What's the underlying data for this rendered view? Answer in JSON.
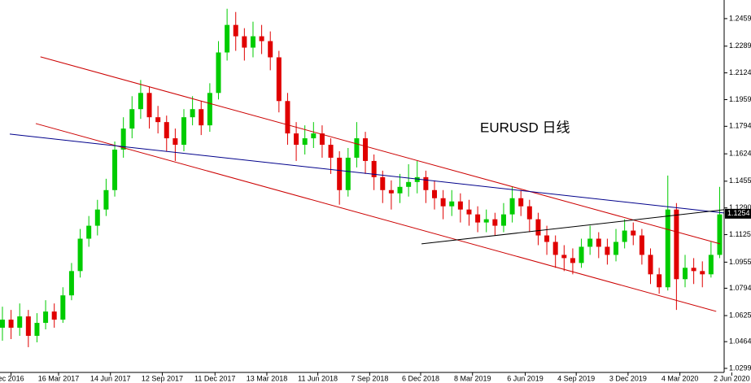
{
  "chart_data": {
    "type": "candlestick",
    "annotation": "EURUSD 日线",
    "up_color": "#00cc00",
    "down_color": "#e00000",
    "xlim": [
      -0.28,
      83.52
    ],
    "ylim": [
      1.0274,
      1.2574
    ],
    "yticks": [
      1.2459,
      1.2289,
      1.2124,
      1.1959,
      1.1794,
      1.1624,
      1.1455,
      {
        "value": 1.129,
        "label": "1.1290"
      },
      1.1125,
      1.0955,
      1.0794,
      1.0625,
      1.0464,
      1.0299
    ],
    "xticks": [
      {
        "value": 1,
        "label": "ec 2016"
      },
      {
        "value": 6.5,
        "label": "16 Mar 2017"
      },
      {
        "value": 12.5,
        "label": "14 Jun 2017"
      },
      {
        "value": 18.5,
        "label": "12 Sep 2017"
      },
      {
        "value": 24.6,
        "label": "11 Dec 2017"
      },
      {
        "value": 30.6,
        "label": "13 Mar 2018"
      },
      {
        "value": 36.5,
        "label": "11 Jun 2018"
      },
      {
        "value": 42.5,
        "label": "7 Sep 2018"
      },
      {
        "value": 48.4,
        "label": "6 Dec 2018"
      },
      {
        "value": 54.4,
        "label": "8 Mar 2019"
      },
      {
        "value": 60.5,
        "label": "6 Jun 2019"
      },
      {
        "value": 66.4,
        "label": "4 Sep 2019"
      },
      {
        "value": 72.4,
        "label": "3 Dec 2019"
      },
      {
        "value": 78.4,
        "label": "4 Mar 2020"
      },
      {
        "value": 84.4,
        "label": "2 Jun 2020"
      }
    ],
    "last_price": 1.1254,
    "open": [
      1.055,
      1.06,
      1.055,
      1.062,
      1.05,
      1.058,
      1.065,
      1.06,
      1.075,
      1.09,
      1.11,
      1.118,
      1.128,
      1.14,
      1.165,
      1.178,
      1.19,
      1.2,
      1.185,
      1.182,
      1.172,
      1.168,
      1.185,
      1.19,
      1.18,
      1.2,
      1.225,
      1.242,
      1.235,
      1.228,
      1.235,
      1.232,
      1.222,
      1.195,
      1.175,
      1.168,
      1.172,
      1.175,
      1.168,
      1.16,
      1.14,
      1.16,
      1.172,
      1.158,
      1.148,
      1.14,
      1.138,
      1.142,
      1.145,
      1.148,
      1.14,
      1.135,
      1.13,
      1.133,
      1.128,
      1.125,
      1.12,
      1.122,
      1.118,
      1.125,
      1.135,
      1.13,
      1.122,
      1.112,
      1.108,
      1.1,
      1.098,
      1.095,
      1.105,
      1.11,
      1.105,
      1.1,
      1.108,
      1.115,
      1.112,
      1.1,
      1.088,
      1.08,
      1.128,
      1.085,
      1.092,
      1.09,
      1.088,
      1.1
    ],
    "high": [
      1.068,
      1.066,
      1.07,
      1.066,
      1.064,
      1.072,
      1.07,
      1.08,
      1.095,
      1.116,
      1.124,
      1.134,
      1.147,
      1.17,
      1.185,
      1.198,
      1.208,
      1.204,
      1.192,
      1.186,
      1.178,
      1.19,
      1.198,
      1.195,
      1.206,
      1.232,
      1.252,
      1.25,
      1.24,
      1.244,
      1.242,
      1.238,
      1.226,
      1.2,
      1.182,
      1.18,
      1.182,
      1.18,
      1.172,
      1.164,
      1.166,
      1.182,
      1.176,
      1.162,
      1.152,
      1.146,
      1.15,
      1.156,
      1.158,
      1.152,
      1.146,
      1.14,
      1.14,
      1.138,
      1.134,
      1.13,
      1.128,
      1.126,
      1.132,
      1.142,
      1.14,
      1.134,
      1.126,
      1.118,
      1.112,
      1.106,
      1.104,
      1.11,
      1.118,
      1.114,
      1.11,
      1.116,
      1.122,
      1.12,
      1.116,
      1.104,
      1.092,
      1.149,
      1.132,
      1.1,
      1.098,
      1.096,
      1.108,
      1.142
    ],
    "low": [
      1.047,
      1.048,
      1.05,
      1.043,
      1.046,
      1.054,
      1.055,
      1.058,
      1.072,
      1.086,
      1.105,
      1.112,
      1.124,
      1.136,
      1.16,
      1.172,
      1.184,
      1.178,
      1.175,
      1.164,
      1.158,
      1.164,
      1.18,
      1.174,
      1.176,
      1.196,
      1.22,
      1.226,
      1.22,
      1.222,
      1.224,
      1.214,
      1.188,
      1.168,
      1.158,
      1.162,
      1.166,
      1.16,
      1.15,
      1.131,
      1.136,
      1.154,
      1.15,
      1.14,
      1.132,
      1.128,
      1.132,
      1.136,
      1.138,
      1.132,
      1.128,
      1.122,
      1.124,
      1.12,
      1.118,
      1.114,
      1.114,
      1.112,
      1.114,
      1.12,
      1.124,
      1.114,
      1.106,
      1.1,
      1.092,
      1.09,
      1.088,
      1.092,
      1.1,
      1.098,
      1.094,
      1.096,
      1.104,
      1.106,
      1.094,
      1.082,
      1.076,
      1.078,
      1.066,
      1.08,
      1.082,
      1.08,
      1.086,
      1.098
    ],
    "close": [
      1.06,
      1.055,
      1.062,
      1.05,
      1.058,
      1.065,
      1.06,
      1.075,
      1.09,
      1.11,
      1.118,
      1.128,
      1.14,
      1.165,
      1.178,
      1.19,
      1.2,
      1.185,
      1.182,
      1.172,
      1.168,
      1.185,
      1.19,
      1.18,
      1.2,
      1.225,
      1.242,
      1.235,
      1.228,
      1.235,
      1.232,
      1.222,
      1.195,
      1.175,
      1.168,
      1.172,
      1.175,
      1.168,
      1.16,
      1.14,
      1.16,
      1.172,
      1.158,
      1.148,
      1.14,
      1.138,
      1.142,
      1.145,
      1.148,
      1.14,
      1.135,
      1.13,
      1.133,
      1.128,
      1.125,
      1.12,
      1.122,
      1.118,
      1.125,
      1.135,
      1.13,
      1.122,
      1.112,
      1.108,
      1.1,
      1.098,
      1.095,
      1.105,
      1.11,
      1.105,
      1.1,
      1.108,
      1.115,
      1.112,
      1.1,
      1.088,
      1.08,
      1.128,
      1.085,
      1.092,
      1.09,
      1.088,
      1.1,
      1.125
    ],
    "trend_lines": [
      {
        "color": "#cc0000",
        "start": [
          4.4,
          1.2223
        ],
        "end": [
          83.05,
          1.1068
        ]
      },
      {
        "color": "#cc0000",
        "start": [
          3.86,
          1.1811
        ],
        "end": [
          82.6,
          1.0651
        ]
      },
      {
        "color": "#00008b",
        "start": [
          0.85,
          1.1746
        ],
        "end": [
          83.5,
          1.1259
        ]
      },
      {
        "color": "#000000",
        "start": [
          48.5,
          1.1068
        ],
        "end": [
          83.5,
          1.1279
        ]
      }
    ]
  }
}
